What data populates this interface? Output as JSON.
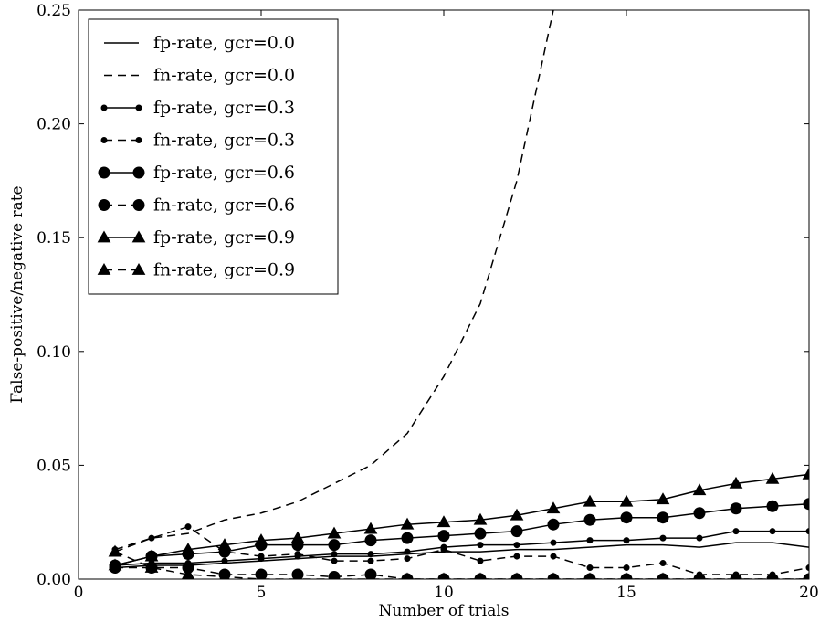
{
  "chart_data": {
    "type": "line",
    "title": "",
    "xlabel": "Number of trials",
    "ylabel": "False-positive/negative rate",
    "xlim": [
      0,
      20
    ],
    "ylim": [
      0,
      0.25
    ],
    "xticks": [
      "0",
      "5",
      "10",
      "15",
      "20"
    ],
    "yticks": [
      "0.00",
      "0.05",
      "0.10",
      "0.15",
      "0.20",
      "0.25"
    ],
    "grid": false,
    "legend_position": "top-left",
    "series": [
      {
        "name": "fp-rate, gcr=0.0",
        "dash": "solid",
        "marker": "none",
        "x": [
          1,
          2,
          3,
          4,
          5,
          6,
          7,
          8,
          9,
          10,
          11,
          12,
          13,
          14,
          15,
          16,
          17,
          18,
          19,
          20
        ],
        "y": [
          0.005,
          0.006,
          0.006,
          0.007,
          0.008,
          0.009,
          0.01,
          0.01,
          0.011,
          0.012,
          0.012,
          0.013,
          0.013,
          0.014,
          0.015,
          0.015,
          0.014,
          0.016,
          0.016,
          0.014
        ]
      },
      {
        "name": "fn-rate, gcr=0.0",
        "dash": "dashed",
        "marker": "none",
        "x": [
          1,
          2,
          3,
          4,
          5,
          6,
          7,
          8,
          9,
          10,
          11,
          12,
          13,
          14
        ],
        "y": [
          0.012,
          0.018,
          0.02,
          0.026,
          0.029,
          0.034,
          0.042,
          0.05,
          0.064,
          0.089,
          0.121,
          0.175,
          0.25,
          0.3
        ]
      },
      {
        "name": "fp-rate, gcr=0.3",
        "dash": "solid",
        "marker": "small-circle",
        "x": [
          1,
          2,
          3,
          4,
          5,
          6,
          7,
          8,
          9,
          10,
          11,
          12,
          13,
          14,
          15,
          16,
          17,
          18,
          19,
          20
        ],
        "y": [
          0.006,
          0.007,
          0.007,
          0.008,
          0.009,
          0.01,
          0.011,
          0.011,
          0.012,
          0.014,
          0.015,
          0.015,
          0.016,
          0.017,
          0.017,
          0.018,
          0.018,
          0.021,
          0.021,
          0.021
        ]
      },
      {
        "name": "fn-rate, gcr=0.3",
        "dash": "dashed",
        "marker": "small-circle",
        "x": [
          1,
          2,
          3,
          4,
          5,
          6,
          7,
          8,
          9,
          10,
          11,
          12,
          13,
          14,
          15,
          16,
          17,
          18,
          19,
          20
        ],
        "y": [
          0.013,
          0.018,
          0.023,
          0.012,
          0.01,
          0.011,
          0.008,
          0.008,
          0.009,
          0.013,
          0.008,
          0.01,
          0.01,
          0.005,
          0.005,
          0.007,
          0.002,
          0.002,
          0.002,
          0.005
        ]
      },
      {
        "name": "fp-rate, gcr=0.6",
        "dash": "solid",
        "marker": "large-circle",
        "x": [
          1,
          2,
          3,
          4,
          5,
          6,
          7,
          8,
          9,
          10,
          11,
          12,
          13,
          14,
          15,
          16,
          17,
          18,
          19,
          20
        ],
        "y": [
          0.006,
          0.01,
          0.011,
          0.012,
          0.015,
          0.015,
          0.015,
          0.017,
          0.018,
          0.019,
          0.02,
          0.021,
          0.024,
          0.026,
          0.027,
          0.027,
          0.029,
          0.031,
          0.032,
          0.033
        ]
      },
      {
        "name": "fn-rate, gcr=0.6",
        "dash": "dashed",
        "marker": "large-circle",
        "x": [
          1,
          2,
          3,
          4,
          5,
          6,
          7,
          8,
          9,
          10,
          11,
          12,
          13,
          14,
          15,
          16,
          17,
          18,
          19,
          20
        ],
        "y": [
          0.005,
          0.005,
          0.005,
          0.002,
          0.002,
          0.002,
          0.001,
          0.002,
          0.0,
          0.0,
          0.0,
          0.0,
          0.0,
          0.0,
          0.0,
          0.0,
          0.0,
          0.0,
          0.0,
          0.0
        ]
      },
      {
        "name": "fp-rate, gcr=0.9",
        "dash": "solid",
        "marker": "triangle",
        "x": [
          1,
          2,
          3,
          4,
          5,
          6,
          7,
          8,
          9,
          10,
          11,
          12,
          13,
          14,
          15,
          16,
          17,
          18,
          19,
          20
        ],
        "y": [
          0.006,
          0.01,
          0.013,
          0.015,
          0.017,
          0.018,
          0.02,
          0.022,
          0.024,
          0.025,
          0.026,
          0.028,
          0.031,
          0.034,
          0.034,
          0.035,
          0.039,
          0.042,
          0.044,
          0.046
        ]
      },
      {
        "name": "fn-rate, gcr=0.9",
        "dash": "dashed",
        "marker": "triangle",
        "x": [
          1,
          2,
          3,
          4,
          5,
          6,
          7,
          8,
          9,
          10,
          11,
          12,
          13,
          14,
          15,
          16,
          17,
          18,
          19,
          20
        ],
        "y": [
          0.012,
          0.005,
          0.002,
          0.001,
          0.0,
          0.0,
          0.0,
          0.0,
          0.0,
          0.0,
          0.0,
          0.0,
          0.0,
          0.0,
          0.0,
          0.0,
          0.0,
          0.0,
          0.0,
          0.0
        ]
      }
    ]
  }
}
